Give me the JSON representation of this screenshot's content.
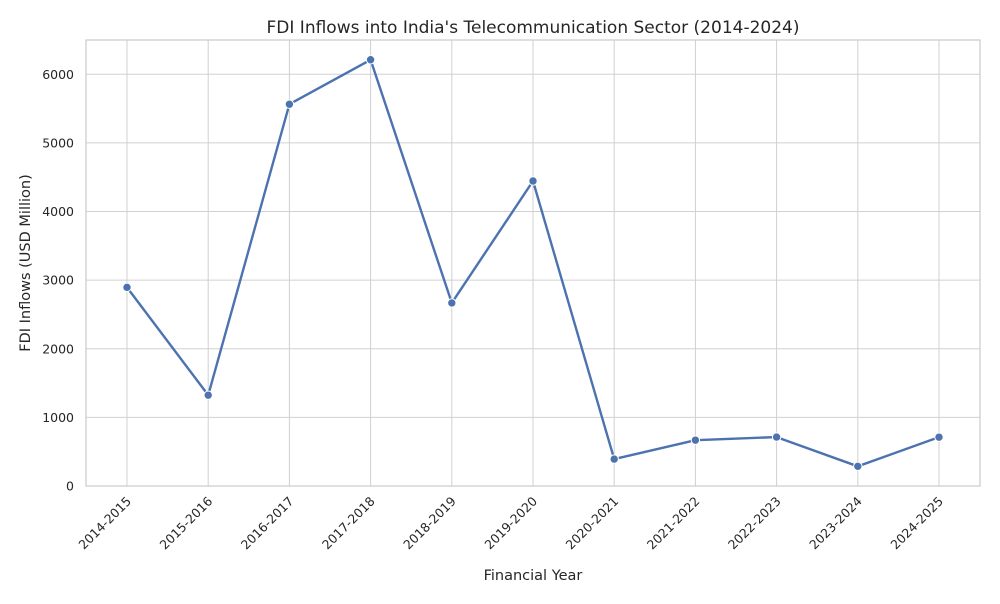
{
  "chart_data": {
    "type": "line",
    "title": "FDI Inflows into India's Telecommunication Sector (2014-2024)",
    "xlabel": "Financial Year",
    "ylabel": "FDI Inflows (USD Million)",
    "categories": [
      "2014-2015",
      "2015-2016",
      "2016-2017",
      "2017-2018",
      "2018-2019",
      "2019-2020",
      "2020-2021",
      "2021-2022",
      "2022-2023",
      "2023-2024",
      "2024-2025"
    ],
    "series": [
      {
        "color": "#4c72b0",
        "marker": "circle",
        "values": [
          2895,
          1324,
          5564,
          6212,
          2668,
          4445,
          392,
          668,
          713,
          287,
          712
        ]
      }
    ],
    "ylim": [
      0,
      6500
    ],
    "yticks": [
      0,
      1000,
      2000,
      3000,
      4000,
      5000,
      6000
    ],
    "grid": true,
    "legend": "none"
  }
}
